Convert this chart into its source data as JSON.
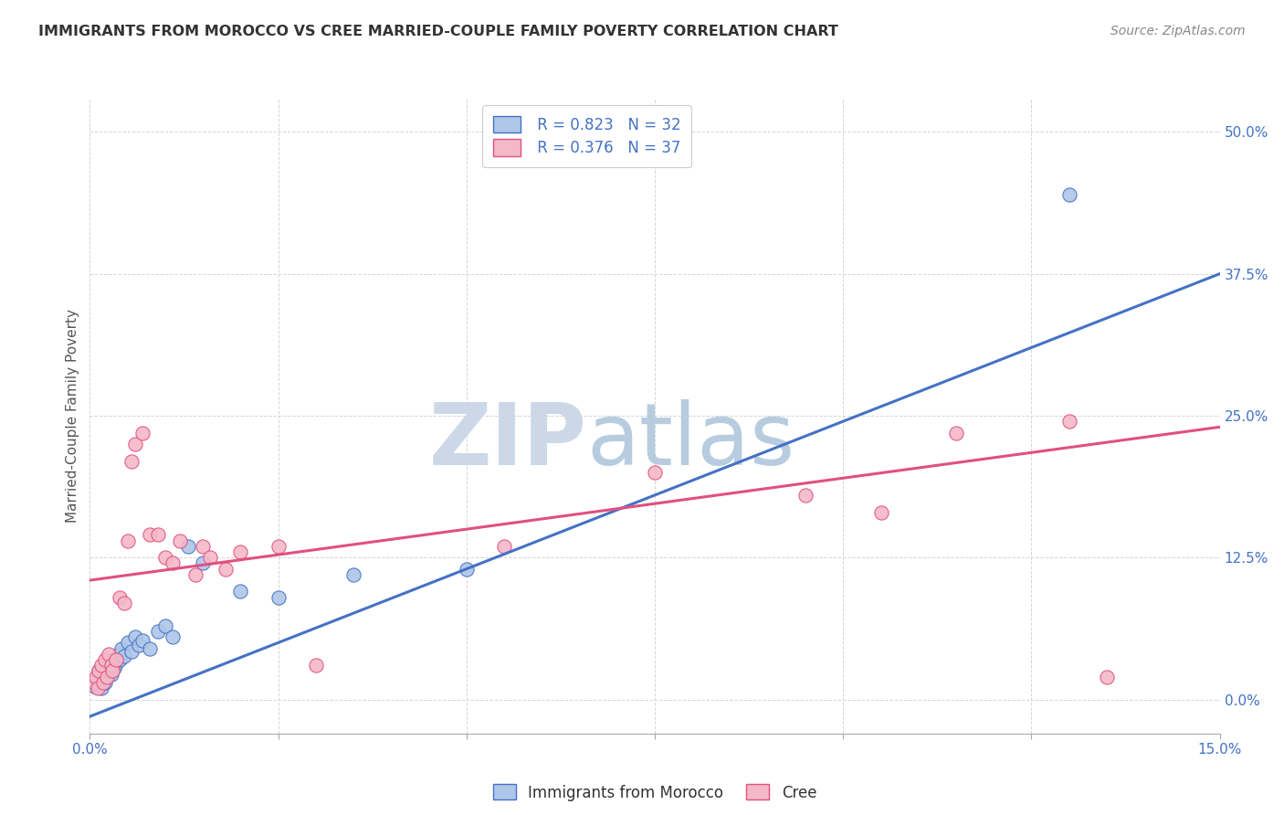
{
  "title": "IMMIGRANTS FROM MOROCCO VS CREE MARRIED-COUPLE FAMILY POVERTY CORRELATION CHART",
  "source": "Source: ZipAtlas.com",
  "xlabel_edge_left": "0.0%",
  "xlabel_edge_right": "15.0%",
  "xlabel_values": [
    0.0,
    2.5,
    5.0,
    7.5,
    10.0,
    12.5,
    15.0
  ],
  "ylabel_ticks": [
    "0.0%",
    "12.5%",
    "25.0%",
    "37.5%",
    "50.0%"
  ],
  "ylabel_values": [
    0.0,
    12.5,
    25.0,
    37.5,
    50.0
  ],
  "xlim": [
    0.0,
    15.0
  ],
  "ylim": [
    -3.0,
    53.0
  ],
  "ylabel": "Married-Couple Family Poverty",
  "blue_R": "R = 0.823",
  "blue_N": "N = 32",
  "pink_R": "R = 0.376",
  "pink_N": "N = 37",
  "blue_scatter": [
    [
      0.05,
      1.2
    ],
    [
      0.1,
      1.8
    ],
    [
      0.12,
      2.5
    ],
    [
      0.15,
      1.0
    ],
    [
      0.18,
      2.0
    ],
    [
      0.2,
      1.5
    ],
    [
      0.22,
      2.8
    ],
    [
      0.25,
      3.0
    ],
    [
      0.28,
      2.2
    ],
    [
      0.3,
      3.5
    ],
    [
      0.32,
      2.8
    ],
    [
      0.35,
      3.2
    ],
    [
      0.38,
      4.0
    ],
    [
      0.4,
      3.5
    ],
    [
      0.42,
      4.5
    ],
    [
      0.45,
      3.8
    ],
    [
      0.5,
      5.0
    ],
    [
      0.55,
      4.2
    ],
    [
      0.6,
      5.5
    ],
    [
      0.65,
      4.8
    ],
    [
      0.7,
      5.2
    ],
    [
      0.8,
      4.5
    ],
    [
      0.9,
      6.0
    ],
    [
      1.0,
      6.5
    ],
    [
      1.1,
      5.5
    ],
    [
      1.3,
      13.5
    ],
    [
      1.5,
      12.0
    ],
    [
      2.0,
      9.5
    ],
    [
      2.5,
      9.0
    ],
    [
      3.5,
      11.0
    ],
    [
      5.0,
      11.5
    ],
    [
      13.0,
      44.5
    ]
  ],
  "pink_scatter": [
    [
      0.05,
      1.5
    ],
    [
      0.08,
      2.0
    ],
    [
      0.1,
      1.0
    ],
    [
      0.12,
      2.5
    ],
    [
      0.15,
      3.0
    ],
    [
      0.18,
      1.5
    ],
    [
      0.2,
      3.5
    ],
    [
      0.22,
      2.0
    ],
    [
      0.25,
      4.0
    ],
    [
      0.28,
      3.0
    ],
    [
      0.3,
      2.5
    ],
    [
      0.35,
      3.5
    ],
    [
      0.4,
      9.0
    ],
    [
      0.45,
      8.5
    ],
    [
      0.5,
      14.0
    ],
    [
      0.55,
      21.0
    ],
    [
      0.6,
      22.5
    ],
    [
      0.7,
      23.5
    ],
    [
      0.8,
      14.5
    ],
    [
      0.9,
      14.5
    ],
    [
      1.0,
      12.5
    ],
    [
      1.1,
      12.0
    ],
    [
      1.2,
      14.0
    ],
    [
      1.4,
      11.0
    ],
    [
      1.5,
      13.5
    ],
    [
      1.6,
      12.5
    ],
    [
      1.8,
      11.5
    ],
    [
      2.0,
      13.0
    ],
    [
      2.5,
      13.5
    ],
    [
      3.0,
      3.0
    ],
    [
      5.5,
      13.5
    ],
    [
      7.5,
      20.0
    ],
    [
      9.5,
      18.0
    ],
    [
      10.5,
      16.5
    ],
    [
      11.5,
      23.5
    ],
    [
      13.0,
      24.5
    ],
    [
      13.5,
      2.0
    ]
  ],
  "blue_line_x": [
    0.0,
    15.0
  ],
  "blue_line_y": [
    -1.5,
    37.5
  ],
  "pink_line_x": [
    0.0,
    15.0
  ],
  "pink_line_y": [
    10.5,
    24.0
  ],
  "blue_fill_color": "#aec6e8",
  "blue_edge_color": "#4472c4",
  "pink_fill_color": "#f4b8c8",
  "pink_edge_color": "#e05080",
  "legend_label_blue": "Immigrants from Morocco",
  "legend_label_pink": "Cree",
  "grid_color": "#cccccc",
  "bg_color": "#ffffff",
  "title_color": "#333333",
  "right_tick_color": "#4472c4",
  "watermark_zip_color": "#ccd8e8",
  "watermark_atlas_color": "#b8cce0"
}
